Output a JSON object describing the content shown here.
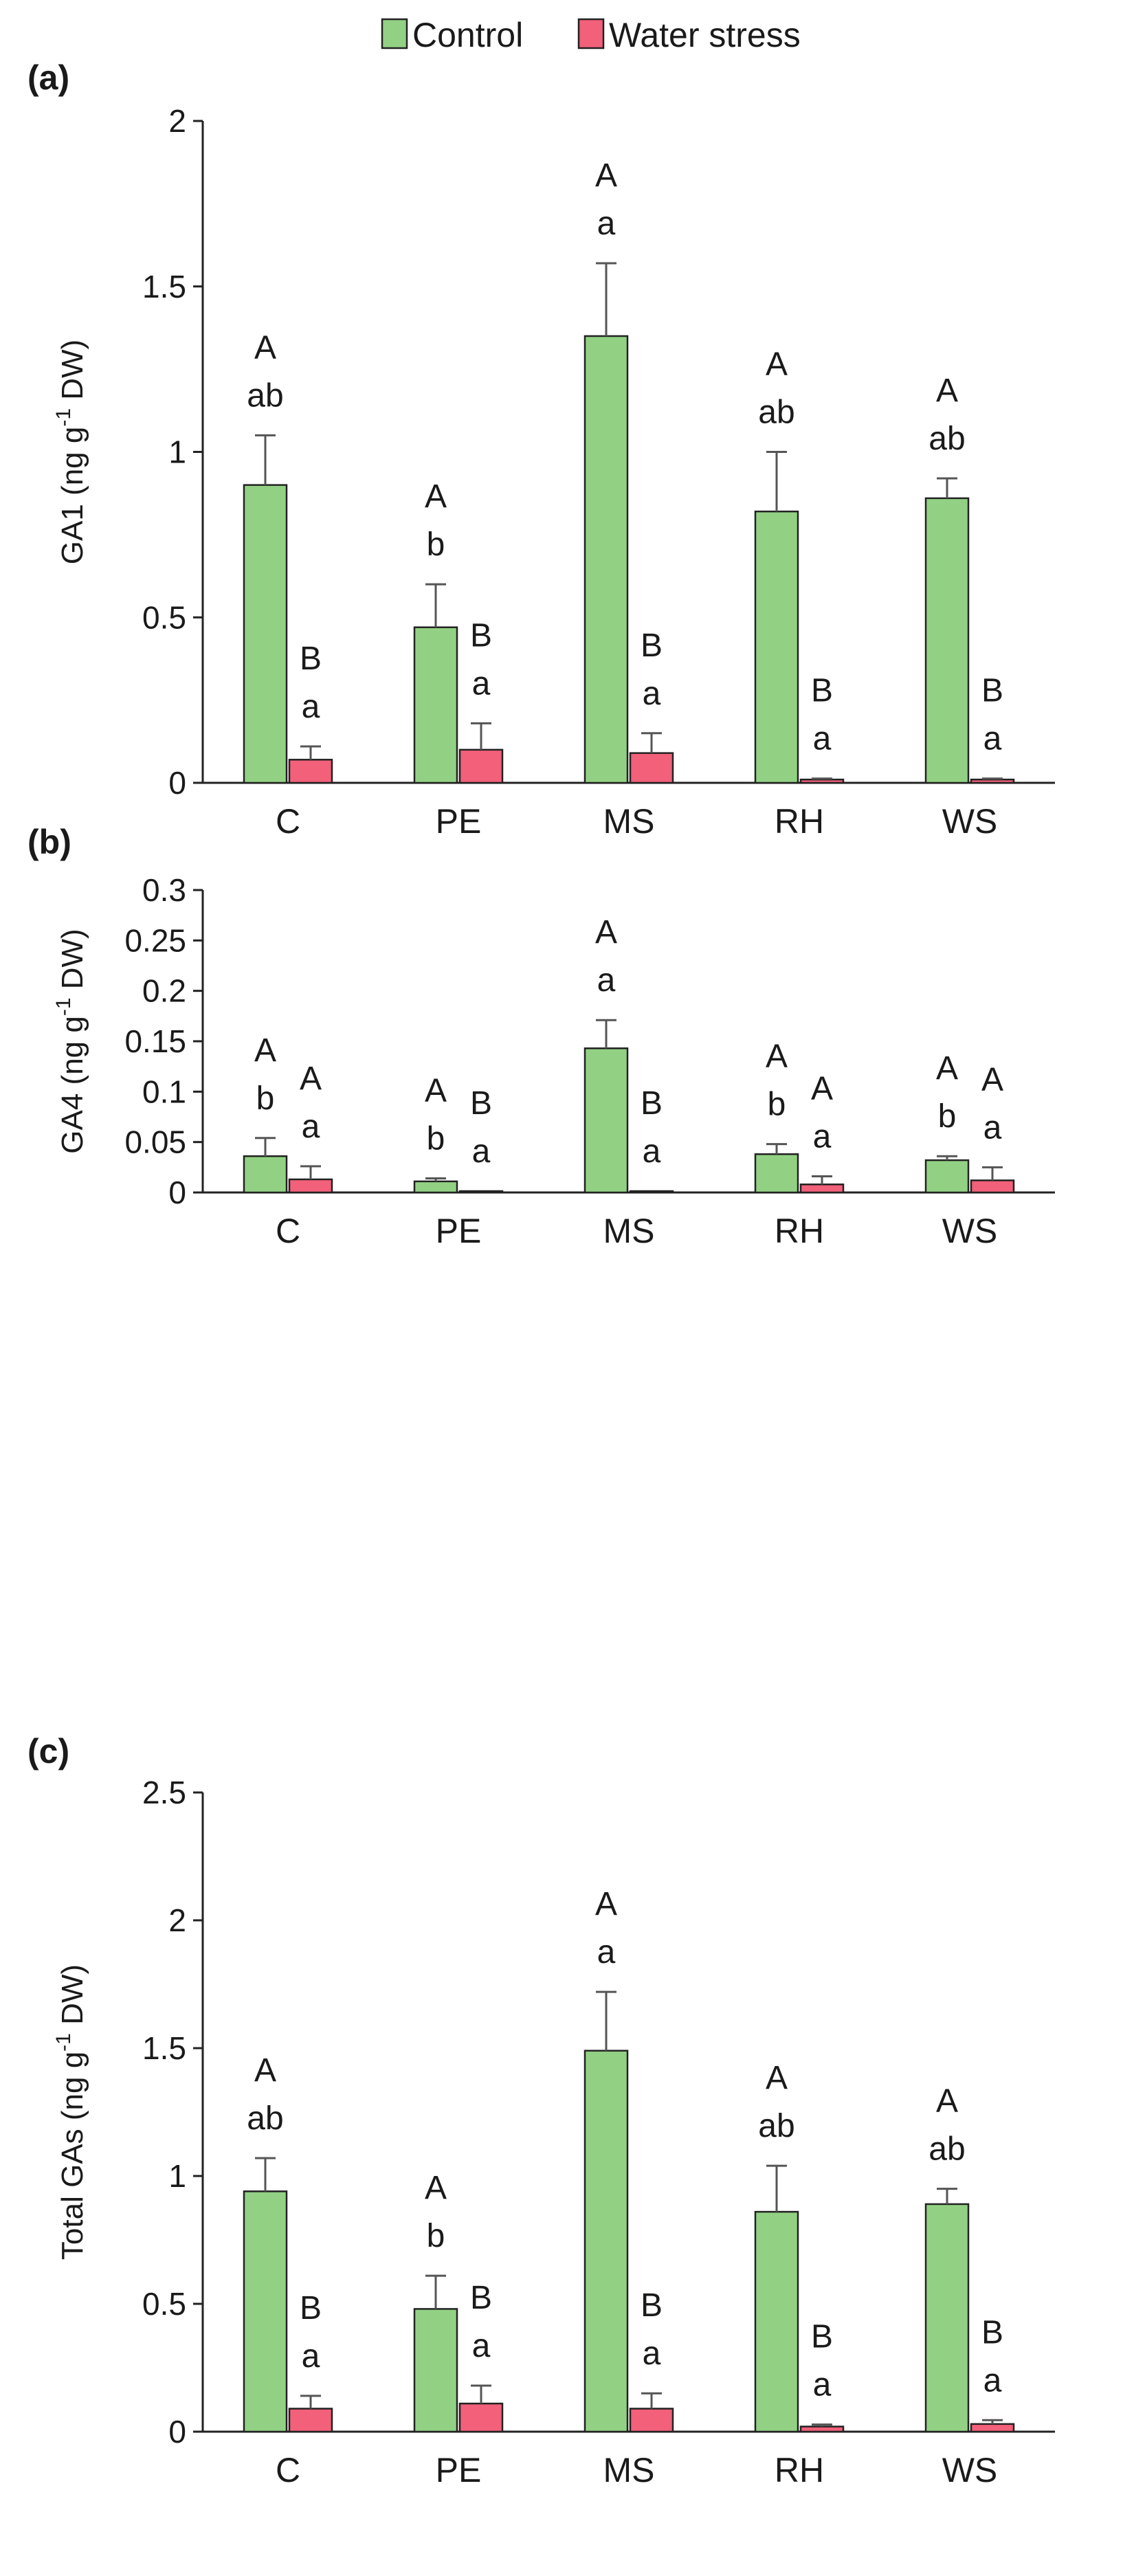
{
  "legend": {
    "items": [
      {
        "label": "Control",
        "color": "#92d184"
      },
      {
        "label": "Water stress",
        "color": "#f2607a"
      }
    ]
  },
  "chart_data": [
    {
      "type": "bar",
      "panel": "(a)",
      "title": "",
      "xlabel": "",
      "ylabel": "GA1 (ng g-1 DW)",
      "ylabel_parts": {
        "pre": "GA1 (ng g",
        "sup": "-1",
        "post": " DW)"
      },
      "ylim": [
        0,
        2
      ],
      "yticks": [
        0,
        0.5,
        1,
        1.5,
        2
      ],
      "ytick_labels": [
        "0",
        "0.5",
        "1",
        "1.5",
        "2"
      ],
      "categories": [
        "C",
        "PE",
        "MS",
        "RH",
        "WS"
      ],
      "series": [
        {
          "name": "Control",
          "values": [
            0.9,
            0.47,
            1.35,
            0.82,
            0.86
          ],
          "errors": [
            0.15,
            0.13,
            0.22,
            0.18,
            0.06
          ],
          "labels_top": [
            "A",
            "A",
            "A",
            "A",
            "A"
          ],
          "labels_bottom": [
            "ab",
            "b",
            "a",
            "ab",
            "ab"
          ]
        },
        {
          "name": "Water stress",
          "values": [
            0.07,
            0.1,
            0.09,
            0.01,
            0.01
          ],
          "errors": [
            0.04,
            0.08,
            0.06,
            0.003,
            0.003
          ],
          "labels_top": [
            "B",
            "B",
            "B",
            "B",
            "B"
          ],
          "labels_bottom": [
            "a",
            "a",
            "a",
            "a",
            "a"
          ]
        }
      ]
    },
    {
      "type": "bar",
      "panel": "(b)",
      "title": "",
      "xlabel": "",
      "ylabel": "GA4 (ng g-1 DW)",
      "ylabel_parts": {
        "pre": "GA4 (ng g",
        "sup": "-1",
        "post": " DW)"
      },
      "ylim": [
        0,
        0.3
      ],
      "yticks": [
        0,
        0.05,
        0.1,
        0.15,
        0.2,
        0.25,
        0.3
      ],
      "ytick_labels": [
        "0",
        "0.05",
        "0.1",
        "0.15",
        "0.2",
        "0.25",
        "0.3"
      ],
      "categories": [
        "C",
        "PE",
        "MS",
        "RH",
        "WS"
      ],
      "series": [
        {
          "name": "Control",
          "values": [
            0.036,
            0.011,
            0.143,
            0.038,
            0.032
          ],
          "errors": [
            0.018,
            0.003,
            0.028,
            0.01,
            0.004
          ],
          "labels_top": [
            "A",
            "A",
            "A",
            "A",
            "A"
          ],
          "labels_bottom": [
            "b",
            "b",
            "a",
            "b",
            "b"
          ]
        },
        {
          "name": "Water stress",
          "values": [
            0.013,
            0.0005,
            0.0007,
            0.008,
            0.012
          ],
          "errors": [
            0.013,
            0.0002,
            0.0003,
            0.008,
            0.013
          ],
          "labels_top": [
            "A",
            "B",
            "B",
            "A",
            "A"
          ],
          "labels_bottom": [
            "a",
            "a",
            "a",
            "a",
            "a"
          ]
        }
      ]
    },
    {
      "type": "bar",
      "panel": "(c)",
      "title": "",
      "xlabel": "",
      "ylabel": "Total GAs (ng g-1 DW)",
      "ylabel_parts": {
        "pre": "Total GAs (ng g",
        "sup": "-1",
        "post": " DW)"
      },
      "ylim": [
        0,
        2.5
      ],
      "yticks": [
        0,
        0.5,
        1,
        1.5,
        2,
        2.5
      ],
      "ytick_labels": [
        "0",
        "0.5",
        "1",
        "1.5",
        "2",
        "2.5"
      ],
      "categories": [
        "C",
        "PE",
        "MS",
        "RH",
        "WS"
      ],
      "series": [
        {
          "name": "Control",
          "values": [
            0.94,
            0.48,
            1.49,
            0.86,
            0.89
          ],
          "errors": [
            0.13,
            0.13,
            0.23,
            0.18,
            0.06
          ],
          "labels_top": [
            "A",
            "A",
            "A",
            "A",
            "A"
          ],
          "labels_bottom": [
            "ab",
            "b",
            "a",
            "ab",
            "ab"
          ]
        },
        {
          "name": "Water stress",
          "values": [
            0.09,
            0.11,
            0.09,
            0.02,
            0.03
          ],
          "errors": [
            0.05,
            0.07,
            0.06,
            0.008,
            0.015
          ],
          "labels_top": [
            "B",
            "B",
            "B",
            "B",
            "B"
          ],
          "labels_bottom": [
            "a",
            "a",
            "a",
            "a",
            "a"
          ]
        }
      ]
    }
  ]
}
